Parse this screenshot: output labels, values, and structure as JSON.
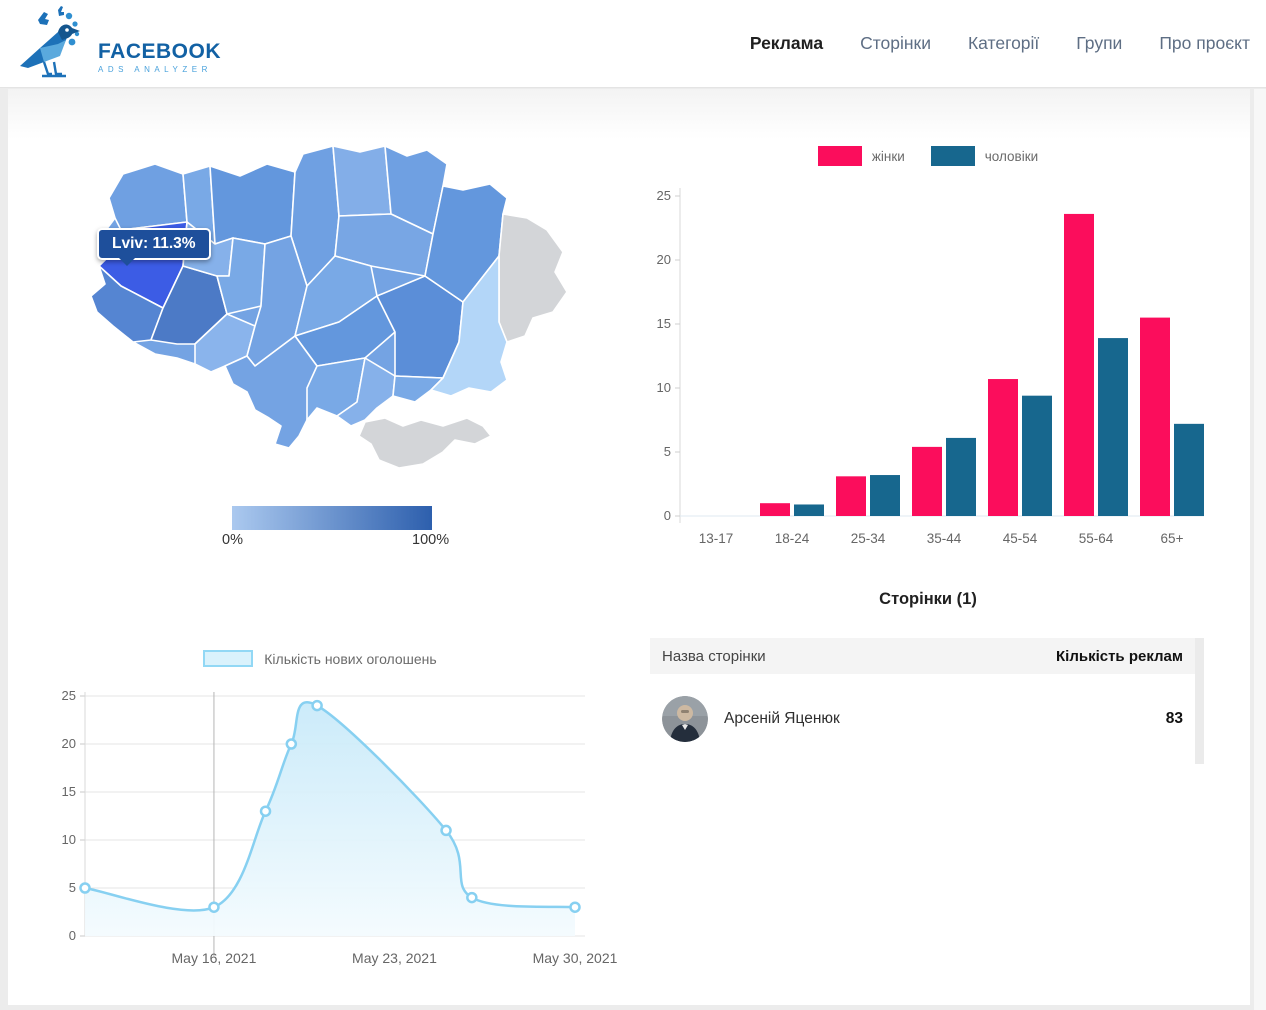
{
  "header": {
    "logo": {
      "title": "FACEBOOK",
      "subtitle": "ADS ANALYZER"
    },
    "nav": [
      {
        "label": "Реклама",
        "active": true
      },
      {
        "label": "Сторінки",
        "active": false
      },
      {
        "label": "Категорії",
        "active": false
      },
      {
        "label": "Групи",
        "active": false
      },
      {
        "label": "Про проєкт",
        "active": false
      }
    ]
  },
  "pages": {
    "heading": "Сторінки (1)",
    "columns": [
      "Назва сторінки",
      "Кількість реклам"
    ],
    "rows": [
      {
        "name": "Арсеній Яценюк",
        "count": "83"
      }
    ]
  },
  "chart_data": [
    {
      "id": "demographics",
      "type": "bar",
      "title": "",
      "categories": [
        "13-17",
        "18-24",
        "25-34",
        "35-44",
        "45-54",
        "55-64",
        "65+"
      ],
      "series": [
        {
          "name": "жінки",
          "color": "#fb0d5c",
          "values": [
            0,
            1.0,
            3.1,
            5.4,
            10.7,
            23.6,
            15.5
          ]
        },
        {
          "name": "чоловіки",
          "color": "#17678e",
          "values": [
            0,
            0.9,
            3.2,
            6.1,
            9.4,
            13.9,
            7.2
          ]
        }
      ],
      "ylim": [
        0,
        25
      ],
      "yticks": [
        0,
        5,
        10,
        15,
        20,
        25
      ],
      "legend_position": "top",
      "grid": false
    },
    {
      "id": "timeline",
      "type": "area",
      "legend": "Кількість нових оголошень",
      "color": "#87d0f1",
      "fill_top": "#c6e9f9",
      "fill_bottom": "#f4fbfe",
      "x_days": [
        0,
        5,
        7,
        8,
        9,
        14,
        15,
        19
      ],
      "x_dates": [
        "May 11, 2021",
        "May 16, 2021",
        "May 18, 2021",
        "May 19, 2021",
        "May 20, 2021",
        "May 25, 2021",
        "May 26, 2021",
        "May 30, 2021"
      ],
      "values": [
        5,
        3,
        13,
        20,
        24,
        11,
        4,
        3
      ],
      "xticks": [
        {
          "day": 5,
          "label": "May 16, 2021"
        },
        {
          "day": 12,
          "label": "May 23, 2021"
        },
        {
          "day": 19,
          "label": "May 30, 2021"
        }
      ],
      "ylim": [
        0,
        25
      ],
      "yticks": [
        0,
        5,
        10,
        15,
        20,
        25
      ],
      "vline_day": 5,
      "grid": true
    },
    {
      "id": "regions-map",
      "type": "choropleth",
      "tooltip": "Lviv: 11.3%",
      "region_highlight": {
        "name": "Lviv",
        "value_pct": 11.3
      },
      "scale": {
        "min_label": "0%",
        "max_label": "100%",
        "min_color": "#abc9ef",
        "max_color": "#2d5fad"
      },
      "highlight_color": "#3c5ce5",
      "base_color": "#74a3e3",
      "excluded_color": "#d3d5d8"
    }
  ]
}
